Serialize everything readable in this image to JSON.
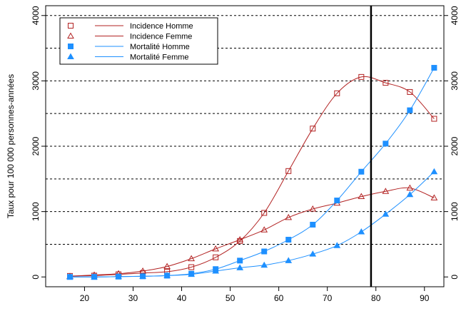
{
  "chart_data": {
    "type": "line",
    "title": "",
    "xlabel": "",
    "ylabel": "Taux pour 100 000 personnes-années",
    "xlim": [
      12,
      94
    ],
    "ylim": [
      -150,
      4150
    ],
    "x_ticks": [
      20,
      30,
      40,
      50,
      60,
      70,
      80,
      90
    ],
    "y_ticks": [
      0,
      1000,
      2000,
      3000,
      4000
    ],
    "y_gridlines": [
      500,
      1000,
      1500,
      2000,
      2500,
      3000,
      3500,
      4000
    ],
    "y_axis_right": true,
    "grid": "horizontal-dashed",
    "legend_position": "top-left",
    "vertical_line_x": 79,
    "x": [
      17,
      22,
      27,
      32,
      37,
      42,
      47,
      52,
      57,
      62,
      67,
      72,
      77,
      82,
      87,
      92
    ],
    "series": [
      {
        "name": "Incidence Homme",
        "color": "#b22222",
        "marker": "open-square",
        "values": [
          15,
          20,
          40,
          60,
          80,
          150,
          300,
          550,
          980,
          1620,
          2270,
          2810,
          3060,
          2970,
          2830,
          2420
        ]
      },
      {
        "name": "Incidence Femme",
        "color": "#b22222",
        "marker": "open-triangle",
        "values": [
          10,
          30,
          50,
          90,
          160,
          280,
          430,
          570,
          720,
          910,
          1040,
          1130,
          1230,
          1310,
          1360,
          1210
        ]
      },
      {
        "name": "Mortalité Homme",
        "color": "#1e90ff",
        "marker": "filled-square",
        "values": [
          0,
          0,
          5,
          10,
          20,
          50,
          120,
          250,
          390,
          570,
          800,
          1170,
          1610,
          2040,
          2550,
          3200
        ]
      },
      {
        "name": "Mortalité Femme",
        "color": "#1e90ff",
        "marker": "filled-triangle",
        "values": [
          0,
          0,
          5,
          10,
          20,
          40,
          90,
          140,
          180,
          250,
          350,
          480,
          690,
          960,
          1260,
          1610
        ]
      }
    ]
  }
}
